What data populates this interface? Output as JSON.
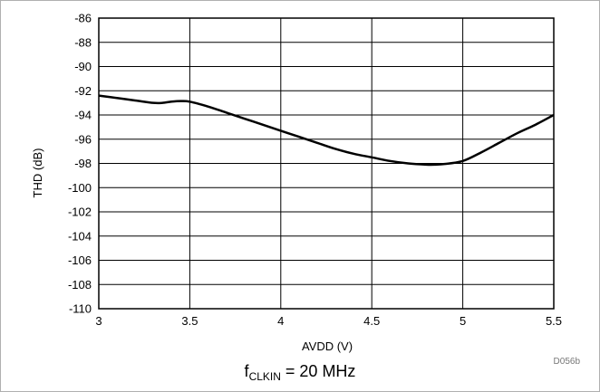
{
  "chart_data": {
    "type": "line",
    "xlabel": "AVDD (V)",
    "ylabel": "THD (dB)",
    "xlim": [
      3,
      5.5
    ],
    "ylim": [
      -110,
      -86
    ],
    "x_ticks": [
      3,
      3.5,
      4,
      4.5,
      5,
      5.5
    ],
    "y_ticks": [
      -86,
      -88,
      -90,
      -92,
      -94,
      -96,
      -98,
      -100,
      -102,
      -104,
      -106,
      -108,
      -110
    ],
    "grid": true,
    "series": [
      {
        "x": [
          3.0,
          3.1,
          3.2,
          3.3,
          3.35,
          3.4,
          3.45,
          3.5,
          3.6,
          3.7,
          3.8,
          3.9,
          4.0,
          4.1,
          4.2,
          4.3,
          4.4,
          4.5,
          4.6,
          4.7,
          4.8,
          4.85,
          4.9,
          5.0,
          5.1,
          5.2,
          5.3,
          5.4,
          5.5
        ],
        "y": [
          -92.4,
          -92.6,
          -92.8,
          -93.0,
          -93.0,
          -92.9,
          -92.85,
          -92.9,
          -93.3,
          -93.8,
          -94.3,
          -94.8,
          -95.3,
          -95.8,
          -96.3,
          -96.8,
          -97.2,
          -97.5,
          -97.8,
          -98.0,
          -98.1,
          -98.1,
          -98.05,
          -97.8,
          -97.1,
          -96.3,
          -95.5,
          -94.8,
          -94.0
        ]
      }
    ],
    "figure_id": "D056b",
    "caption": {
      "prefix": "f",
      "subscript": "CLKIN",
      "suffix": " = 20 MHz"
    }
  }
}
